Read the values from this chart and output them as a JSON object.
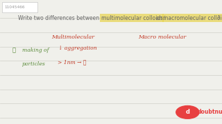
{
  "bg_color": "#f0f0eb",
  "id_text": "11045466",
  "question_pre": "Write two differences between ",
  "q_part1": "multimolecular colloids",
  "q_mid": " and ",
  "q_part2": "macromolecular colloids",
  "q_end": " ?",
  "col1_header": "Multimolecular",
  "col2_header": "Macro molecular",
  "point_num": "①",
  "point_label1": "making of",
  "point_label2": "particles",
  "col1_line1": "↓ aggregation",
  "col1_line2": "> 1nm → ①",
  "text_color_dark": "#c23b28",
  "text_color_green": "#5a8a3a",
  "highlight_yellow": "#e8d44d",
  "line_color": "#d0d0c8",
  "id_color": "#999999",
  "q_color": "#666666",
  "doubnut_text": "doubtnut",
  "doubnut_bg": "#e84040"
}
